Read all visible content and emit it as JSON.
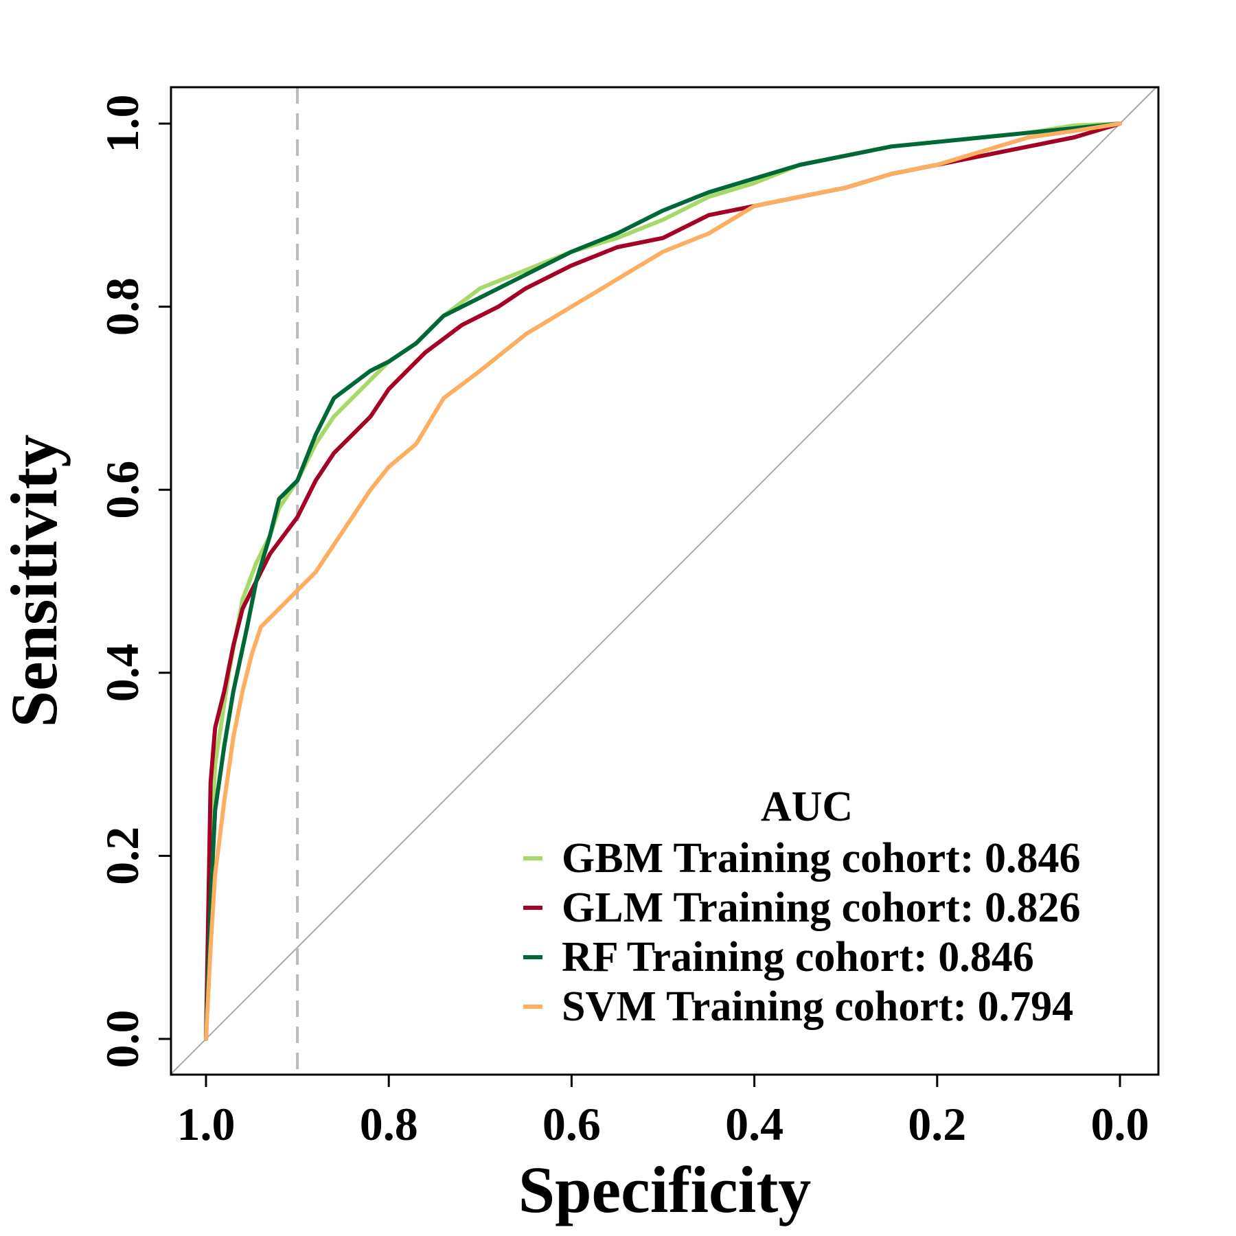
{
  "chart_data": {
    "type": "line",
    "title": "",
    "xlabel": "Specificity",
    "ylabel": "Sensitivity",
    "xlim": [
      1.0,
      0.0
    ],
    "ylim": [
      0.0,
      1.0
    ],
    "x_ticks": [
      "1.0",
      "0.8",
      "0.6",
      "0.4",
      "0.2",
      "0.0"
    ],
    "y_ticks": [
      "0.0",
      "0.2",
      "0.4",
      "0.6",
      "0.8",
      "1.0"
    ],
    "reference_line": {
      "from": [
        1.0,
        0.0
      ],
      "to": [
        0.0,
        1.0
      ],
      "color": "#aaaaaa"
    },
    "threshold_line": {
      "specificity": 0.9,
      "color": "#bbbbbb",
      "style": "dashed"
    },
    "legend": {
      "title": "AUC",
      "position": "bottom-right"
    },
    "series": [
      {
        "name": "GBM Training cohort: 0.846",
        "color": "#a6d96a",
        "points": [
          [
            1.0,
            0.0
          ],
          [
            0.995,
            0.2
          ],
          [
            0.99,
            0.3
          ],
          [
            0.975,
            0.4
          ],
          [
            0.96,
            0.48
          ],
          [
            0.945,
            0.52
          ],
          [
            0.93,
            0.55
          ],
          [
            0.92,
            0.58
          ],
          [
            0.9,
            0.61
          ],
          [
            0.88,
            0.65
          ],
          [
            0.86,
            0.68
          ],
          [
            0.84,
            0.7
          ],
          [
            0.82,
            0.72
          ],
          [
            0.8,
            0.74
          ],
          [
            0.77,
            0.76
          ],
          [
            0.74,
            0.79
          ],
          [
            0.7,
            0.82
          ],
          [
            0.65,
            0.84
          ],
          [
            0.6,
            0.86
          ],
          [
            0.55,
            0.875
          ],
          [
            0.5,
            0.895
          ],
          [
            0.45,
            0.92
          ],
          [
            0.4,
            0.935
          ],
          [
            0.35,
            0.955
          ],
          [
            0.3,
            0.965
          ],
          [
            0.25,
            0.975
          ],
          [
            0.2,
            0.98
          ],
          [
            0.15,
            0.985
          ],
          [
            0.1,
            0.99
          ],
          [
            0.05,
            0.998
          ],
          [
            0.0,
            1.0
          ]
        ]
      },
      {
        "name": "GLM Training cohort: 0.826",
        "color": "#a50026",
        "points": [
          [
            1.0,
            0.0
          ],
          [
            0.995,
            0.28
          ],
          [
            0.99,
            0.34
          ],
          [
            0.98,
            0.38
          ],
          [
            0.97,
            0.43
          ],
          [
            0.96,
            0.47
          ],
          [
            0.945,
            0.5
          ],
          [
            0.93,
            0.53
          ],
          [
            0.9,
            0.57
          ],
          [
            0.88,
            0.61
          ],
          [
            0.86,
            0.64
          ],
          [
            0.84,
            0.66
          ],
          [
            0.82,
            0.68
          ],
          [
            0.8,
            0.71
          ],
          [
            0.78,
            0.73
          ],
          [
            0.76,
            0.75
          ],
          [
            0.72,
            0.78
          ],
          [
            0.68,
            0.8
          ],
          [
            0.65,
            0.82
          ],
          [
            0.6,
            0.845
          ],
          [
            0.55,
            0.865
          ],
          [
            0.5,
            0.875
          ],
          [
            0.45,
            0.9
          ],
          [
            0.4,
            0.91
          ],
          [
            0.35,
            0.92
          ],
          [
            0.3,
            0.93
          ],
          [
            0.25,
            0.945
          ],
          [
            0.2,
            0.955
          ],
          [
            0.15,
            0.965
          ],
          [
            0.1,
            0.975
          ],
          [
            0.05,
            0.985
          ],
          [
            0.0,
            1.0
          ]
        ]
      },
      {
        "name": "RF Training cohort: 0.846",
        "color": "#006837",
        "points": [
          [
            1.0,
            0.0
          ],
          [
            0.995,
            0.15
          ],
          [
            0.99,
            0.25
          ],
          [
            0.98,
            0.32
          ],
          [
            0.97,
            0.38
          ],
          [
            0.955,
            0.45
          ],
          [
            0.945,
            0.5
          ],
          [
            0.93,
            0.55
          ],
          [
            0.92,
            0.59
          ],
          [
            0.9,
            0.61
          ],
          [
            0.88,
            0.66
          ],
          [
            0.86,
            0.7
          ],
          [
            0.84,
            0.715
          ],
          [
            0.82,
            0.73
          ],
          [
            0.8,
            0.74
          ],
          [
            0.77,
            0.76
          ],
          [
            0.74,
            0.79
          ],
          [
            0.7,
            0.81
          ],
          [
            0.65,
            0.835
          ],
          [
            0.6,
            0.86
          ],
          [
            0.55,
            0.88
          ],
          [
            0.5,
            0.905
          ],
          [
            0.45,
            0.925
          ],
          [
            0.4,
            0.94
          ],
          [
            0.35,
            0.955
          ],
          [
            0.3,
            0.965
          ],
          [
            0.25,
            0.975
          ],
          [
            0.2,
            0.98
          ],
          [
            0.15,
            0.985
          ],
          [
            0.1,
            0.99
          ],
          [
            0.05,
            0.995
          ],
          [
            0.0,
            1.0
          ]
        ]
      },
      {
        "name": "SVM Training cohort: 0.794",
        "color": "#fdae61",
        "points": [
          [
            1.0,
            0.0
          ],
          [
            0.995,
            0.1
          ],
          [
            0.99,
            0.18
          ],
          [
            0.98,
            0.26
          ],
          [
            0.97,
            0.33
          ],
          [
            0.96,
            0.38
          ],
          [
            0.95,
            0.42
          ],
          [
            0.94,
            0.45
          ],
          [
            0.92,
            0.47
          ],
          [
            0.9,
            0.49
          ],
          [
            0.88,
            0.51
          ],
          [
            0.86,
            0.54
          ],
          [
            0.84,
            0.57
          ],
          [
            0.82,
            0.6
          ],
          [
            0.8,
            0.625
          ],
          [
            0.77,
            0.65
          ],
          [
            0.74,
            0.7
          ],
          [
            0.7,
            0.73
          ],
          [
            0.65,
            0.77
          ],
          [
            0.6,
            0.8
          ],
          [
            0.55,
            0.83
          ],
          [
            0.5,
            0.86
          ],
          [
            0.45,
            0.88
          ],
          [
            0.4,
            0.91
          ],
          [
            0.35,
            0.92
          ],
          [
            0.3,
            0.93
          ],
          [
            0.25,
            0.945
          ],
          [
            0.2,
            0.955
          ],
          [
            0.15,
            0.97
          ],
          [
            0.1,
            0.985
          ],
          [
            0.05,
            0.992
          ],
          [
            0.0,
            1.0
          ]
        ]
      }
    ]
  }
}
